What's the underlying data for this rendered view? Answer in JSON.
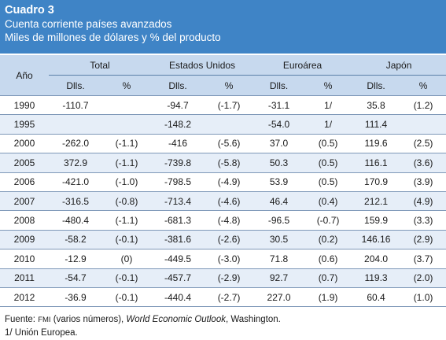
{
  "header": {
    "title": "Cuadro 3",
    "subtitle": "Cuenta corriente países avanzados",
    "units": "Miles de millones de dólares y % del producto"
  },
  "columns": {
    "year": "Año",
    "groups": [
      "Total",
      "Estados Unidos",
      "Euroárea",
      "Japón"
    ],
    "sub_dlls": "Dlls.",
    "sub_pct": "%"
  },
  "rows": [
    {
      "year": "1990",
      "v": [
        "-110.7",
        "",
        "-94.7",
        "(-1.7)",
        "-31.1",
        "1/",
        "35.8",
        "(1.2)"
      ]
    },
    {
      "year": "1995",
      "v": [
        "",
        "",
        "-148.2",
        "",
        "-54.0",
        "1/",
        "111.4",
        ""
      ]
    },
    {
      "year": "2000",
      "v": [
        "-262.0",
        "(-1.1)",
        "-416",
        "(-5.6)",
        "37.0",
        "(0.5)",
        "119.6",
        "(2.5)"
      ]
    },
    {
      "year": "2005",
      "v": [
        "372.9",
        "(-1.1)",
        "-739.8",
        "(-5.8)",
        "50.3",
        "(0.5)",
        "116.1",
        "(3.6)"
      ]
    },
    {
      "year": "2006",
      "v": [
        "-421.0",
        "(-1.0)",
        "-798.5",
        "(-4.9)",
        "53.9",
        "(0.5)",
        "170.9",
        "(3.9)"
      ]
    },
    {
      "year": "2007",
      "v": [
        "-316.5",
        "(-0.8)",
        "-713.4",
        "(-4.6)",
        "46.4",
        "(0.4)",
        "212.1",
        "(4.9)"
      ]
    },
    {
      "year": "2008",
      "v": [
        "-480.4",
        "(-1.1)",
        "-681.3",
        "(-4.8)",
        "-96.5",
        "(-0.7)",
        "159.9",
        "(3.3)"
      ]
    },
    {
      "year": "2009",
      "v": [
        "-58.2",
        "(-0.1)",
        "-381.6",
        "(-2.6)",
        "30.5",
        "(0.2)",
        "146.16",
        "(2.9)"
      ]
    },
    {
      "year": "2010",
      "v": [
        "-12.9",
        "(0)",
        "-449.5",
        "(-3.0)",
        "71.8",
        "(0.6)",
        "204.0",
        "(3.7)"
      ]
    },
    {
      "year": "2011",
      "v": [
        "-54.7",
        "(-0.1)",
        "-457.7",
        "(-2.9)",
        "92.7",
        "(0.7)",
        "119.3",
        "(2.0)"
      ]
    },
    {
      "year": "2012",
      "v": [
        "-36.9",
        "(-0.1)",
        "-440.4",
        "(-2.7)",
        "227.0",
        "(1.9)",
        "60.4",
        "(1.0)"
      ]
    }
  ],
  "footer": {
    "source_prefix": "Fuente: ",
    "source_org": "FMI",
    "source_mid": " (varios números), ",
    "source_pub": "World Economic Outlook",
    "source_suffix": ", Washington.",
    "note": "1/ Unión Europea."
  },
  "colors": {
    "header_bg": "#3f84c6",
    "column_header_bg": "#c7d9ee",
    "row_shade": "#e6eef8"
  }
}
